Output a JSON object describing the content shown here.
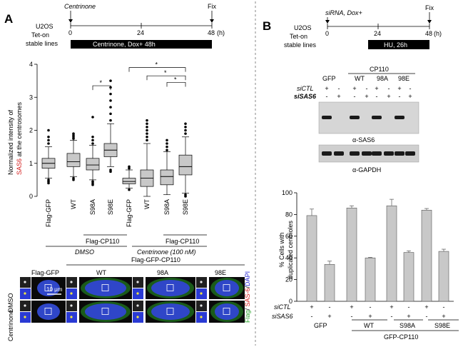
{
  "panel_a": {
    "letter": "A",
    "timeline": {
      "treatment": "Centrinone",
      "fix": "Fix",
      "cells_line1": "U2OS",
      "cells_line2": "Tet-on",
      "cells_line3": "stable lines",
      "ticks": [
        "0",
        "24",
        "48"
      ],
      "unit": "(h)",
      "bar_label": "Centrinone, Dox+ 48h"
    },
    "boxplot": {
      "ylabel_line1": "Normalized intensity of",
      "ylabel_sas6": "SAS6",
      "ylabel_line2_rest": " at the centrosomes",
      "sig": "*",
      "group_top_label": "Flag-CP110",
      "dmso_label": "DMSO",
      "centrinone_label": "Centrinone (100 nM)"
    },
    "micro": {
      "header_flag_gfp": "Flag-GFP",
      "header_flag_gfp_cp110": "Flag-GFP-CP110",
      "col_wt": "WT",
      "col_98a": "98A",
      "col_98e": "98E",
      "row_dmso": "DMSO",
      "row_centrinone": "Centrinone",
      "scale": "10 μm",
      "legend_flag": "Flag",
      "legend_sep1": "/ ",
      "legend_sas6": "SAS-6",
      "legend_sep2": "/",
      "legend_dapi": "DAPI",
      "color_flag": "#2aa52a",
      "color_sas6": "#d42020",
      "color_dapi": "#2a2ad4"
    }
  },
  "panel_b": {
    "letter": "B",
    "timeline": {
      "treatment": "siRNA, Dox+",
      "fix": "Fix",
      "cells_line1": "U2OS",
      "cells_line2": "Tet-on",
      "cells_line3": "stable lines",
      "ticks": [
        "0",
        "24",
        "48"
      ],
      "unit": "(h)",
      "bar_label": "HU, 26h"
    },
    "blot": {
      "col_gfp": "GFP",
      "col_cp110": "CP110",
      "col_wt": "WT",
      "col_98a": "98A",
      "col_98e": "98E",
      "row_sictl": "siCTL",
      "row_sisas6": "siSAS6",
      "signs_sictl": [
        "+",
        "-",
        "+",
        "-",
        "+",
        "-",
        "+",
        "-"
      ],
      "signs_sisas6": [
        "-",
        "+",
        "-",
        "+",
        "-",
        "+",
        "-",
        "+"
      ],
      "label_sas6": "α-SAS6",
      "label_gapdh": "α-GAPDH"
    },
    "bar_axis": {
      "ylabel_line1": "% Cells with",
      "ylabel_line2": "duplicated centrioles",
      "row_sictl": "siCTL",
      "row_sisas6": "siSAS6",
      "signs_sictl": [
        "+",
        "-",
        "+",
        "-",
        "+",
        "-",
        "+",
        "-"
      ],
      "signs_sisas6": [
        "-",
        "+",
        "-",
        "+",
        "-",
        "+",
        "-",
        "+"
      ],
      "group_gfp": "GFP",
      "group_wt": "WT",
      "group_s98a": "S98A",
      "group_s98e": "S98E",
      "group_gfp_cp110": "GFP-CP110"
    }
  },
  "chart_data": [
    {
      "type": "box",
      "panel": "A",
      "ylabel": "Normalized intensity of SAS6 at the centrosomes",
      "ylim": [
        0,
        4
      ],
      "yticks": [
        0,
        1,
        2,
        3,
        4
      ],
      "grid": false,
      "categories": [
        "Flag-GFP",
        "WT",
        "S98A",
        "S98E",
        "Flag-GFP",
        "WT",
        "S98A",
        "S98E"
      ],
      "groups": [
        "DMSO",
        "DMSO",
        "DMSO",
        "DMSO",
        "Centrinone (100 nM)",
        "Centrinone (100 nM)",
        "Centrinone (100 nM)",
        "Centrinone (100 nM)"
      ],
      "boxes": [
        {
          "whisker_low": 0.55,
          "q1": 0.85,
          "median": 1.0,
          "q3": 1.15,
          "whisker_high": 1.5,
          "out_low": [
            0.5,
            0.45,
            0.4
          ],
          "out_high": [
            1.6,
            1.7,
            1.8,
            2.0
          ]
        },
        {
          "whisker_low": 0.6,
          "q1": 0.9,
          "median": 1.05,
          "q3": 1.3,
          "whisker_high": 1.7,
          "out_low": [
            0.55,
            0.5
          ],
          "out_high": [
            1.75,
            1.8,
            1.85,
            1.9
          ]
        },
        {
          "whisker_low": 0.5,
          "q1": 0.8,
          "median": 0.95,
          "q3": 1.15,
          "whisker_high": 1.55,
          "out_low": [
            0.45,
            0.4,
            0.35
          ],
          "out_high": [
            1.6,
            1.7,
            1.8,
            2.4
          ]
        },
        {
          "whisker_low": 0.9,
          "q1": 1.2,
          "median": 1.4,
          "q3": 1.6,
          "whisker_high": 2.2,
          "out_low": [
            0.8,
            0.75
          ],
          "out_high": [
            2.3,
            2.5,
            2.7,
            2.9,
            3.1,
            3.3,
            3.5
          ]
        },
        {
          "whisker_low": 0.25,
          "q1": 0.38,
          "median": 0.45,
          "q3": 0.55,
          "whisker_high": 0.8,
          "out_low": [
            0.2
          ],
          "out_high": [
            0.85,
            0.9
          ]
        },
        {
          "whisker_low": 0.0,
          "q1": 0.3,
          "median": 0.55,
          "q3": 0.8,
          "whisker_high": 1.6,
          "out_low": [],
          "out_high": [
            1.7,
            1.8,
            1.9,
            2.0,
            2.1,
            2.2,
            2.3
          ]
        },
        {
          "whisker_low": 0.05,
          "q1": 0.35,
          "median": 0.6,
          "q3": 0.8,
          "whisker_high": 1.35,
          "out_low": [],
          "out_high": [
            1.4,
            1.5,
            1.6,
            1.7
          ]
        },
        {
          "whisker_low": 0.1,
          "q1": 0.65,
          "median": 0.9,
          "q3": 1.25,
          "whisker_high": 1.8,
          "out_low": [
            0.05,
            0.0
          ],
          "out_high": [
            1.9,
            2.0,
            2.1,
            2.2
          ]
        }
      ],
      "significance": [
        {
          "from": 2,
          "to": 3,
          "label": "*"
        },
        {
          "from": 4,
          "to": 7,
          "label": "*"
        },
        {
          "from": 5,
          "to": 7,
          "label": "*"
        },
        {
          "from": 6,
          "to": 7,
          "label": "*"
        }
      ]
    },
    {
      "type": "bar",
      "panel": "B",
      "ylabel": "% Cells with duplicated centrioles",
      "ylim": [
        0,
        100
      ],
      "yticks": [
        0,
        20,
        40,
        60,
        80,
        100
      ],
      "categories": [
        "GFP siCTL",
        "GFP siSAS6",
        "WT siCTL",
        "WT siSAS6",
        "S98A siCTL",
        "S98A siSAS6",
        "S98E siCTL",
        "S98E siSAS6"
      ],
      "values": [
        79,
        34,
        86,
        40,
        88,
        45,
        84,
        46
      ],
      "errors": [
        6,
        3,
        2,
        0.5,
        6,
        1.5,
        1.5,
        2
      ],
      "color": "#c8c8c8"
    }
  ]
}
